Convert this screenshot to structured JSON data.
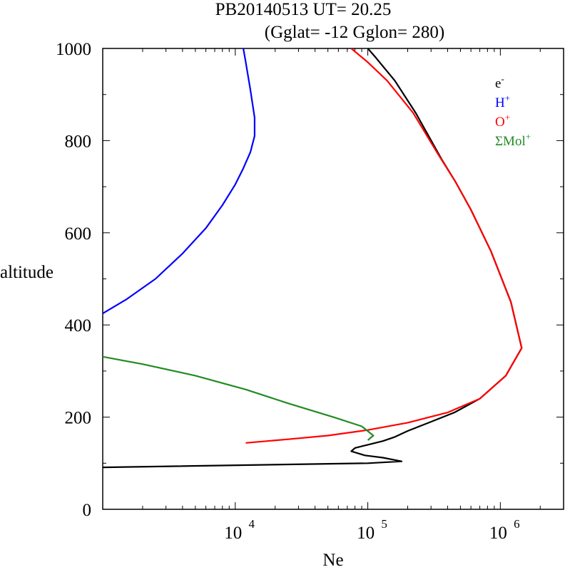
{
  "chart_data": {
    "type": "line",
    "title": "PB20140513   UT=  20.25",
    "subtitle": "(Gglat= -12   Gglon=  280)",
    "xlabel": "Ne",
    "ylabel": "altitude",
    "x_scale": "log",
    "xlim": [
      1000,
      3000000
    ],
    "ylim": [
      0,
      1000
    ],
    "x_ticks": [
      {
        "value": 10000,
        "base": "10",
        "exp": "4"
      },
      {
        "value": 100000,
        "base": "10",
        "exp": "5"
      },
      {
        "value": 1000000,
        "base": "10",
        "exp": "6"
      }
    ],
    "y_ticks": [
      {
        "value": 0,
        "label": "0"
      },
      {
        "value": 200,
        "label": "200"
      },
      {
        "value": 400,
        "label": "400"
      },
      {
        "value": 600,
        "label": "600"
      },
      {
        "value": 800,
        "label": "800"
      },
      {
        "value": 1000,
        "label": "1000"
      }
    ],
    "legend_position": "top-right",
    "series": [
      {
        "name": "e",
        "sup": "-",
        "color": "#000000",
        "points": [
          [
            1000,
            91
          ],
          [
            100000,
            100
          ],
          [
            180000,
            104
          ],
          [
            130000,
            112
          ],
          [
            95000,
            117
          ],
          [
            75000,
            126
          ],
          [
            80000,
            133
          ],
          [
            100000,
            140
          ],
          [
            130000,
            148
          ],
          [
            160000,
            157
          ],
          [
            200000,
            170
          ],
          [
            300000,
            190
          ],
          [
            450000,
            210
          ],
          [
            700000,
            240
          ],
          [
            1100000,
            290
          ],
          [
            1450000,
            350
          ],
          [
            1200000,
            450
          ],
          [
            850000,
            560
          ],
          [
            600000,
            650
          ],
          [
            460000,
            710
          ],
          [
            360000,
            760
          ],
          [
            230000,
            860
          ],
          [
            160000,
            930
          ],
          [
            115000,
            980
          ],
          [
            100000,
            1000
          ]
        ]
      },
      {
        "name": "H",
        "sup": "+",
        "color": "#0000ff",
        "points": [
          [
            1000,
            425
          ],
          [
            1500,
            455
          ],
          [
            2500,
            500
          ],
          [
            4000,
            555
          ],
          [
            6000,
            610
          ],
          [
            8000,
            660
          ],
          [
            10000,
            705
          ],
          [
            11500,
            740
          ],
          [
            13000,
            775
          ],
          [
            14000,
            810
          ],
          [
            14000,
            850
          ],
          [
            13000,
            910
          ],
          [
            12000,
            970
          ],
          [
            11500,
            1000
          ]
        ]
      },
      {
        "name": "O",
        "sup": "+",
        "color": "#ff0000",
        "points": [
          [
            12000,
            144
          ],
          [
            25000,
            152
          ],
          [
            50000,
            160
          ],
          [
            100000,
            172
          ],
          [
            200000,
            188
          ],
          [
            400000,
            210
          ],
          [
            700000,
            240
          ],
          [
            1100000,
            290
          ],
          [
            1450000,
            350
          ],
          [
            1200000,
            450
          ],
          [
            850000,
            560
          ],
          [
            600000,
            650
          ],
          [
            460000,
            710
          ],
          [
            340000,
            770
          ],
          [
            220000,
            860
          ],
          [
            140000,
            930
          ],
          [
            100000,
            970
          ],
          [
            75000,
            1000
          ]
        ]
      },
      {
        "name": "ΣMol",
        "sup": "+",
        "color": "#228b22",
        "points": [
          [
            1000,
            331
          ],
          [
            2000,
            315
          ],
          [
            5000,
            290
          ],
          [
            12000,
            260
          ],
          [
            25000,
            230
          ],
          [
            55000,
            200
          ],
          [
            90000,
            180
          ],
          [
            110000,
            160
          ],
          [
            100000,
            150
          ]
        ]
      }
    ]
  }
}
